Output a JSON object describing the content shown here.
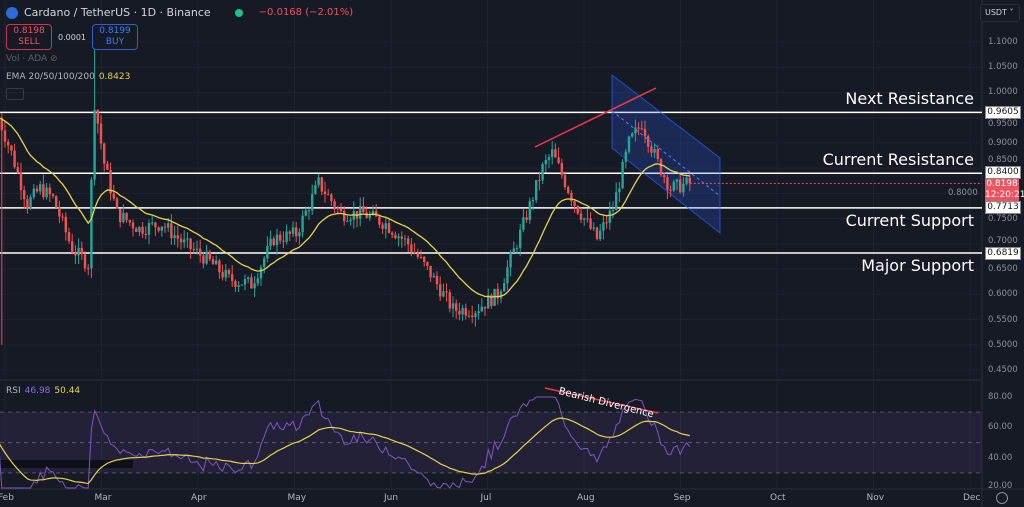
{
  "header": {
    "symbol": "Cardano / TetherUS · 1D · Binance",
    "change": "−0.0168 (−2.01%)"
  },
  "trade": {
    "sell_price": "0.8198",
    "sell_label": "SELL",
    "spread": "0.0001",
    "buy_price": "0.8199",
    "buy_label": "BUY"
  },
  "indicators": {
    "vol_label": "Vol · ADA",
    "ema_label": "EMA 20/50/100/200",
    "ema_value": "0.8423",
    "rsi_label": "RSI",
    "rsi_value": "46.98",
    "rsi_ma_value": "50.44"
  },
  "currency": "USDT",
  "annotations": {
    "levels": [
      {
        "label": "Next Resistance",
        "price": "0.9605"
      },
      {
        "label": "Current Resistance",
        "price": "0.8400"
      },
      {
        "label": "Current Support",
        "price": "0.7713"
      },
      {
        "label": "Major Support",
        "price": "0.6819"
      }
    ],
    "divergence": "Bearish Divergence",
    "last_price": "0.8198",
    "countdown": "12:20:21"
  },
  "colors": {
    "up": "#26a69a",
    "down": "#ef5350",
    "ema": "#e6d34a",
    "rsi": "#7e57c2",
    "channel": "#2962ff",
    "trendline": "#f23645"
  },
  "chart_data": {
    "type": "candlestick",
    "price_axis": {
      "ylim": [
        0.45,
        1.1
      ],
      "ticks": [
        "1.1000",
        "1.0500",
        "1.0000",
        "0.9500",
        "0.9000",
        "0.8500",
        "0.8000",
        "0.7500",
        "0.7000",
        "0.6500",
        "0.6000",
        "0.5500",
        "0.5000",
        "0.4500"
      ]
    },
    "rsi_axis": {
      "ylim": [
        20,
        80
      ],
      "ticks": [
        "80.00",
        "60.00",
        "40.00",
        "20.00"
      ],
      "bands": [
        70,
        50,
        30
      ]
    },
    "x_ticks": [
      "Feb",
      "Mar",
      "Apr",
      "May",
      "Jun",
      "Jul",
      "Aug",
      "Sep",
      "Oct",
      "Nov",
      "Dec"
    ],
    "approx_closes": [
      [
        "Jan 30",
        0.95
      ],
      [
        "Feb 3",
        0.88
      ],
      [
        "Feb 8",
        0.78
      ],
      [
        "Feb 12",
        0.81
      ],
      [
        "Feb 16",
        0.79
      ],
      [
        "Feb 22",
        0.69
      ],
      [
        "Feb 27",
        0.66
      ],
      [
        "Mar 1",
        0.98
      ],
      [
        "Mar 4",
        0.86
      ],
      [
        "Mar 8",
        0.76
      ],
      [
        "Mar 15",
        0.73
      ],
      [
        "Mar 22",
        0.74
      ],
      [
        "Mar 29",
        0.7
      ],
      [
        "Apr 5",
        0.67
      ],
      [
        "Apr 12",
        0.63
      ],
      [
        "Apr 19",
        0.62
      ],
      [
        "Apr 26",
        0.71
      ],
      [
        "May 3",
        0.72
      ],
      [
        "May 10",
        0.82
      ],
      [
        "May 17",
        0.76
      ],
      [
        "May 24",
        0.76
      ],
      [
        "May 31",
        0.74
      ],
      [
        "Jun 7",
        0.7
      ],
      [
        "Jun 14",
        0.64
      ],
      [
        "Jun 21",
        0.57
      ],
      [
        "Jun 28",
        0.57
      ],
      [
        "Jul 5",
        0.6
      ],
      [
        "Jul 12",
        0.72
      ],
      [
        "Jul 19",
        0.85
      ],
      [
        "Jul 22",
        0.88
      ],
      [
        "Jul 29",
        0.78
      ],
      [
        "Aug 5",
        0.71
      ],
      [
        "Aug 10",
        0.77
      ],
      [
        "Aug 15",
        0.9
      ],
      [
        "Aug 19",
        0.94
      ],
      [
        "Aug 24",
        0.86
      ],
      [
        "Aug 28",
        0.81
      ],
      [
        "Sep 3",
        0.82
      ]
    ]
  }
}
